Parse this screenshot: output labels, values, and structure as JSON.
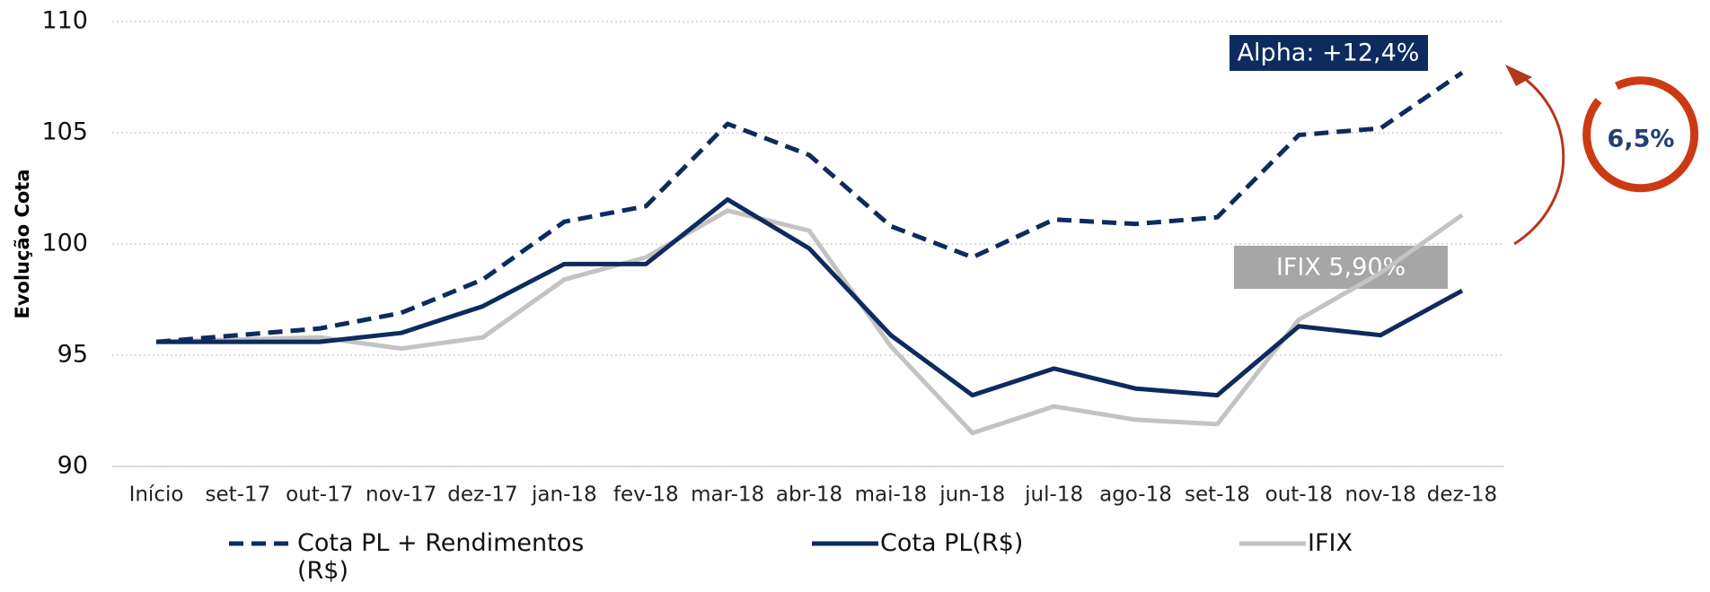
{
  "chart_data": {
    "type": "line",
    "y_label": "Evolução Cota",
    "categories": [
      "Início",
      "set-17",
      "out-17",
      "nov-17",
      "dez-17",
      "jan-18",
      "fev-18",
      "mar-18",
      "abr-18",
      "mai-18",
      "jun-18",
      "jul-18",
      "ago-18",
      "set-18",
      "out-18",
      "nov-18",
      "dez-18"
    ],
    "series": [
      {
        "name": "Cota PL + Rendimentos (R$)",
        "color": "#0d2b5e",
        "dashed": true,
        "values": [
          95.6,
          95.9,
          96.2,
          96.9,
          98.4,
          101.0,
          101.7,
          105.4,
          104.0,
          100.8,
          99.4,
          101.1,
          100.9,
          101.2,
          104.9,
          105.2,
          107.7
        ]
      },
      {
        "name": "Cota PL(R$)",
        "color": "#0d2b5e",
        "dashed": false,
        "values": [
          95.6,
          95.6,
          95.6,
          96.0,
          97.2,
          99.1,
          99.1,
          102.0,
          99.8,
          95.9,
          93.2,
          94.4,
          93.5,
          93.2,
          96.3,
          95.9,
          97.9
        ]
      },
      {
        "name": "IFIX",
        "color": "#c3c3c3",
        "dashed": false,
        "values": [
          95.6,
          95.7,
          95.8,
          95.3,
          95.8,
          98.4,
          99.4,
          101.5,
          100.6,
          95.4,
          91.5,
          92.7,
          92.1,
          91.9,
          96.6,
          98.7,
          101.3
        ]
      }
    ],
    "ylim": [
      90,
      110
    ],
    "yticks": [
      90,
      95,
      100,
      105,
      110
    ],
    "grid": true,
    "legend": "bottom",
    "annotations": [
      "Alpha: +12,4%",
      "IFIX 5,90%",
      "6,5%"
    ]
  }
}
